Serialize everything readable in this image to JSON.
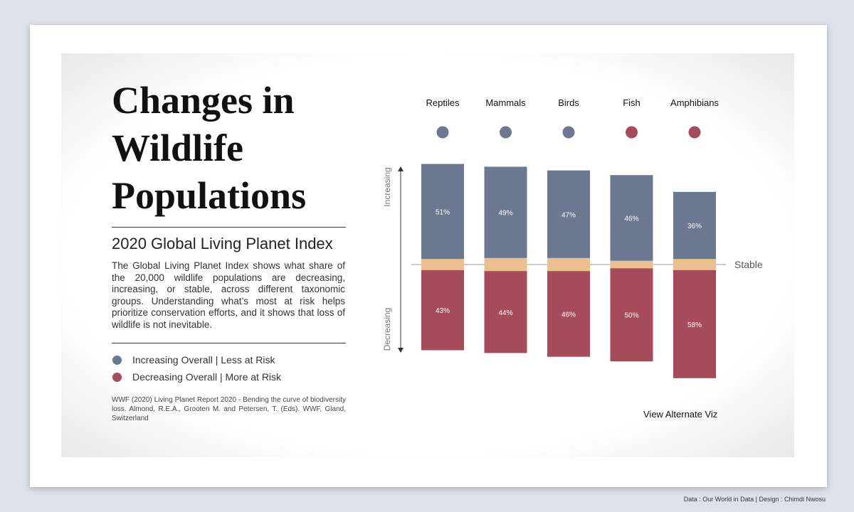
{
  "title": "Changes in Wildlife Populations",
  "subtitle": "2020 Global Living Planet Index",
  "description": "The Global Living Planet Index shows what share of the 20,000 wildlife populations are decreasing, increasing, or stable, across different taxonomic groups. Understanding what’s most at risk helps prioritize conservation efforts, and it shows that loss of wildlife is not inevitable.",
  "legend": [
    {
      "label": "Increasing Overall | Less at Risk",
      "color": "#6b7891"
    },
    {
      "label": "Decreasing Overall | More at Risk",
      "color": "#a64b5a"
    }
  ],
  "source": "WWF (2020) Living Planet Report 2020 - Bending the curve of biodiversity loss. Almond, R.E.A., Grooten M. and Petersen, T. (Eds). WWF, Gland, Switzerland",
  "link": "View Alternate Viz",
  "footer": "Data : Our World in Data | Design : Chimdi Nwosu",
  "chart_data": {
    "type": "diverging_bar",
    "categories": [
      "Reptiles",
      "Mammals",
      "Birds",
      "Fish",
      "Amphibians"
    ],
    "category_colors": [
      "#6b7891",
      "#6b7891",
      "#6b7891",
      "#a64b5a",
      "#a64b5a"
    ],
    "series": [
      {
        "name": "Increasing",
        "color": "#6b7891",
        "values": [
          51,
          49,
          47,
          46,
          36
        ],
        "value_labels": [
          "51%",
          "49%",
          "47%",
          "46%",
          "36%"
        ]
      },
      {
        "name": "Stable",
        "color": "#ebc08e",
        "values": [
          6,
          7,
          7,
          4,
          6
        ]
      },
      {
        "name": "Decreasing",
        "color": "#a64b5a",
        "values": [
          43,
          44,
          46,
          50,
          58
        ],
        "value_labels": [
          "43%",
          "44%",
          "46%",
          "50%",
          "58%"
        ]
      }
    ]
  }
}
